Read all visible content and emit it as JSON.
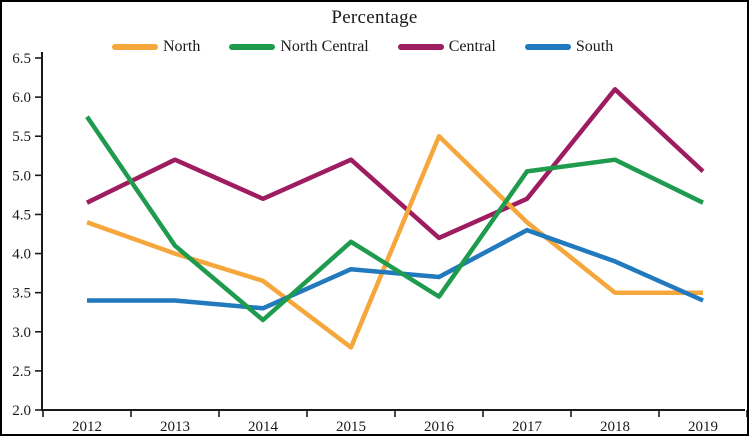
{
  "window": {
    "background": "#ffffff",
    "border_color": "#000000"
  },
  "chart_data": {
    "type": "line",
    "title": "Percentage",
    "xlabel": "",
    "ylabel": "",
    "categories": [
      "2012",
      "2013",
      "2014",
      "2015",
      "2016",
      "2017",
      "2018",
      "2019"
    ],
    "series": [
      {
        "name": "North",
        "color": "#F5A73B",
        "zorder": 2,
        "values": [
          4.4,
          4.0,
          3.65,
          2.8,
          5.5,
          4.4,
          3.5,
          3.5
        ]
      },
      {
        "name": "North Central",
        "color": "#1E9B4D",
        "zorder": 4,
        "values": [
          5.75,
          4.1,
          3.15,
          4.15,
          3.45,
          5.05,
          5.2,
          4.65
        ]
      },
      {
        "name": "Central",
        "color": "#9E1C60",
        "zorder": 1,
        "values": [
          4.65,
          5.2,
          4.7,
          5.2,
          4.2,
          4.7,
          6.1,
          5.05
        ]
      },
      {
        "name": "South",
        "color": "#2179BE",
        "zorder": 3,
        "values": [
          3.4,
          3.4,
          3.3,
          3.8,
          3.7,
          4.3,
          3.9,
          3.4
        ]
      }
    ],
    "ylim": [
      2.0,
      6.5
    ],
    "yticks": [
      "2.0",
      "2.5",
      "3.0",
      "3.5",
      "4.0",
      "4.5",
      "5.0",
      "5.5",
      "6.0",
      "6.5"
    ],
    "grid": false,
    "legend_position": "top",
    "axis_color": "#1a1a1a",
    "text_color": "#1a1a1a",
    "line_width": 4.5
  }
}
